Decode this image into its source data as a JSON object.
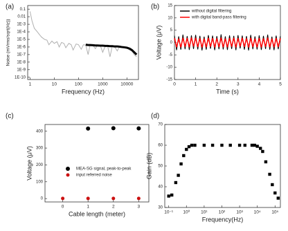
{
  "chart_data": [
    {
      "type": "line",
      "panel_label": "(a)",
      "x_label": "Frequency (Hz)",
      "y_label": "Noise (mVrms/sqrt(Hz))",
      "xscale": "log",
      "yscale": "log",
      "xlim": [
        0.8,
        30000
      ],
      "ylim": [
        5e-11,
        0.3
      ],
      "xticks": [
        1,
        10,
        100,
        1000,
        10000
      ],
      "yticks": [
        0.1,
        0.01,
        {
          "value": 0.001,
          "label": "1E-3"
        },
        {
          "value": 0.0001,
          "label": "1E-4"
        },
        {
          "value": 1e-05,
          "label": "1E-5"
        },
        {
          "value": 1e-06,
          "label": "1E-6"
        },
        {
          "value": 1e-07,
          "label": "1E-7"
        },
        {
          "value": 1e-08,
          "label": "1E-8"
        },
        {
          "value": 1e-09,
          "label": "1E-9"
        },
        {
          "value": 1e-10,
          "label": "1E-10"
        }
      ],
      "x": [
        1,
        1.2,
        1.5,
        2,
        2.5,
        3,
        4,
        5,
        6,
        8,
        10,
        13,
        16,
        20,
        25,
        30,
        40,
        50,
        60,
        80,
        100,
        130,
        160,
        200,
        250,
        300,
        400,
        500,
        600,
        800,
        1000,
        1300,
        1600,
        2000,
        2500,
        3000,
        4000,
        5000,
        6000,
        8000,
        10000,
        13000,
        16000,
        20000,
        25000
      ],
      "series": [
        {
          "color": "#b0b0b0",
          "width": 1,
          "values": [
            0.05,
            0.003,
            0.0003,
            0.0001,
            4e-05,
            2e-05,
            1e-05,
            8e-06,
            2e-06,
            6e-06,
            3e-06,
            5e-06,
            1e-06,
            4e-06,
            3e-06,
            8e-07,
            3e-06,
            2e-06,
            4e-07,
            2.5e-06,
            2e-06,
            5e-07,
            2e-06,
            1.8e-06,
            1e-07,
            1.8e-06,
            1.5e-06,
            6e-07,
            1.6e-06,
            1.5e-06,
            2e-07,
            1.5e-06,
            1.4e-06,
            5e-08,
            1.4e-06,
            1.3e-06,
            3e-07,
            1.2e-06,
            1.1e-06,
            8e-07,
            7e-07,
            4e-07,
            3e-07,
            1e-07,
            5e-08
          ]
        },
        {
          "color": "#000000",
          "width": 3,
          "values": [
            null,
            null,
            null,
            null,
            null,
            null,
            null,
            null,
            null,
            null,
            null,
            null,
            null,
            null,
            null,
            null,
            null,
            null,
            null,
            null,
            null,
            null,
            null,
            2e-06,
            1.8e-06,
            1.8e-06,
            1.7e-06,
            1.6e-06,
            1.6e-06,
            1.5e-06,
            1.5e-06,
            1.4e-06,
            1.4e-06,
            1.3e-06,
            1.3e-06,
            1.2e-06,
            1.2e-06,
            1.1e-06,
            1e-06,
            9e-07,
            8e-07,
            6e-07,
            4e-07,
            2e-07,
            1e-07
          ]
        }
      ]
    },
    {
      "type": "line",
      "panel_label": "(b)",
      "x_label": "Time (s)",
      "y_label": "Voltage (μV)",
      "xlim": [
        0,
        5
      ],
      "ylim": [
        -15,
        15
      ],
      "xticks": [
        0,
        1,
        2,
        3,
        4,
        5
      ],
      "yticks": [
        -15,
        -10,
        -5,
        0,
        5,
        10,
        15
      ],
      "legend": "upper left",
      "x": [
        0,
        0.1,
        0.2,
        0.3,
        0.4,
        0.5,
        0.6,
        0.7,
        0.8,
        0.9,
        1,
        1.1,
        1.2,
        1.3,
        1.4,
        1.5,
        1.6,
        1.7,
        1.8,
        1.9,
        2,
        2.1,
        2.2,
        2.3,
        2.4,
        2.5,
        2.6,
        2.7,
        2.8,
        2.9,
        3,
        3.1,
        3.2,
        3.3,
        3.4,
        3.5,
        3.6,
        3.7,
        3.8,
        3.9,
        4,
        4.1,
        4.2,
        4.3,
        4.4,
        4.5,
        4.6,
        4.7,
        4.8,
        4.9,
        5
      ],
      "series": [
        {
          "name": "without digital filtering",
          "color": "#000000",
          "width": 1,
          "values": [
            2.8,
            -3.1,
            2.5,
            -2.9,
            3.2,
            -2.7,
            2.6,
            -3.0,
            2.9,
            -2.6,
            3.1,
            -2.8,
            2.7,
            -3.2,
            2.4,
            -2.9,
            3.0,
            -2.5,
            2.8,
            -3.1,
            2.6,
            -2.7,
            3.3,
            -2.8,
            2.5,
            -3.0,
            2.9,
            -2.6,
            2.7,
            -3.1,
            3.0,
            -2.4,
            2.8,
            -2.9,
            2.6,
            -3.2,
            3.1,
            -2.7,
            2.5,
            -2.8,
            2.9,
            -3.0,
            2.7,
            -2.6,
            3.2,
            -2.9,
            2.4,
            -3.1,
            2.8,
            -2.7,
            2.6
          ]
        },
        {
          "name": "with digital band-pass filtering",
          "color": "#ff0000",
          "width": 1.5,
          "values": [
            1.8,
            -1.9,
            1.6,
            -2.0,
            1.9,
            -1.7,
            1.8,
            -1.9,
            2.0,
            -1.6,
            1.9,
            -1.8,
            1.7,
            -2.0,
            1.6,
            -1.9,
            1.9,
            -1.7,
            1.8,
            -2.0,
            1.7,
            -1.8,
            2.0,
            -1.9,
            1.6,
            -1.9,
            1.8,
            -1.7,
            1.9,
            -2.0,
            1.8,
            -1.6,
            1.9,
            -1.8,
            1.7,
            -2.0,
            1.9,
            -1.8,
            1.6,
            -1.9,
            1.8,
            -2.0,
            1.7,
            -1.7,
            2.0,
            -1.9,
            1.6,
            -1.9,
            1.8,
            -1.8,
            1.7
          ]
        }
      ]
    },
    {
      "type": "scatter",
      "panel_label": "(c)",
      "x_label": "Cable length (meter)",
      "y_label": "Voltage (μV)",
      "xlim": [
        -0.7,
        3.4
      ],
      "ylim": [
        -20,
        440
      ],
      "xticks": [
        0,
        1,
        2,
        3
      ],
      "yticks": [
        0,
        100,
        200,
        300,
        400
      ],
      "legend": "center right",
      "x": [
        0,
        1,
        2,
        3
      ],
      "series": [
        {
          "name": "MEA-SG signal, peak-to-peak",
          "color": "#000000",
          "marker": "circle",
          "size": 3,
          "values": [
            null,
            416,
            418,
            417
          ],
          "errors": [
            null,
            4,
            3,
            4
          ]
        },
        {
          "name": "input referred noise",
          "color": "#cc1111",
          "marker": "circle",
          "size": 2.5,
          "values": [
            0.8,
            0.8,
            0.8,
            0.9
          ]
        }
      ]
    },
    {
      "type": "scatter",
      "panel_label": "(d)",
      "x_label": "Frequency(Hz)",
      "y_label": "Gain (dB)",
      "xscale": "log",
      "xlim": [
        0.06,
        200000
      ],
      "ylim": [
        30,
        70
      ],
      "xticks": [
        {
          "value": 0.1,
          "label": "10⁻¹"
        },
        {
          "value": 1,
          "label": "10⁰"
        },
        {
          "value": 10,
          "label": "10¹"
        },
        {
          "value": 100,
          "label": "10²"
        },
        {
          "value": 1000,
          "label": "10³"
        },
        {
          "value": 10000,
          "label": "10⁴"
        },
        {
          "value": 100000,
          "label": "10⁵"
        }
      ],
      "yticks": [
        30,
        40,
        50,
        60,
        70
      ],
      "x": [
        0.1,
        0.15,
        0.25,
        0.35,
        0.5,
        0.7,
        1,
        1.4,
        2,
        3,
        10,
        30,
        100,
        300,
        1000,
        2000,
        5000,
        7000,
        10000,
        15000,
        20000,
        30000,
        50000,
        70000,
        100000,
        150000
      ],
      "series": [
        {
          "color": "#000000",
          "marker": "square",
          "size": 2.2,
          "values": [
            35.5,
            36,
            42,
            45.5,
            51,
            55,
            58,
            59.3,
            60,
            60,
            60,
            60,
            60,
            60,
            60,
            60,
            60,
            60,
            59.5,
            58.5,
            57,
            52,
            46,
            41,
            37,
            34.5
          ]
        }
      ]
    }
  ]
}
